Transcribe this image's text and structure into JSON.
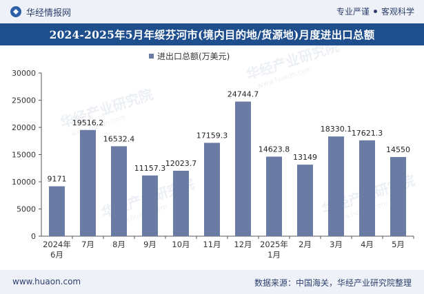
{
  "header": {
    "brand": "华经情报网",
    "tagline_left": "专业严谨",
    "tagline_right": "客观科学"
  },
  "title": "2024-2025年5月年绥芬河市(境内目的地/货源地)月度进出口总额",
  "footer": {
    "website": "www.huaon.com",
    "source": "数据来源：中国海关，华经产业研究院整理"
  },
  "watermark": "华经产业研究院",
  "watermark_url": "www.huaon.com",
  "colors": {
    "bar": "#6a7ca3",
    "title_bg": "#1f4e8c",
    "band": "#eef2f8"
  },
  "chart_data": {
    "type": "bar",
    "title": "2024-2025年5月年绥芬河市(境内目的地/货源地)月度进出口总额",
    "legend": "进出口总额(万美元)",
    "categories": [
      [
        "2024年",
        "6月"
      ],
      [
        "7月"
      ],
      [
        "8月"
      ],
      [
        "9月"
      ],
      [
        "10月"
      ],
      [
        "11月"
      ],
      [
        "12月"
      ],
      [
        "2025年",
        "1月"
      ],
      [
        "2月"
      ],
      [
        "3月"
      ],
      [
        "4月"
      ],
      [
        "5月"
      ]
    ],
    "value_labels": [
      "9171",
      "19516.2",
      "16532.4",
      "11157.3",
      "12023.7",
      "17159.3",
      "24744.7",
      "14623.8",
      "13149",
      "18330.1",
      "17621.3",
      "14550"
    ],
    "values": [
      9171,
      19516.2,
      16532.4,
      11157.3,
      12023.7,
      17159.3,
      24744.7,
      14623.8,
      13149,
      18330.1,
      17621.3,
      14550
    ],
    "ylim": [
      0,
      30000
    ],
    "yticks": [
      0,
      5000,
      10000,
      15000,
      20000,
      25000,
      30000
    ],
    "xlabel": "",
    "ylabel": ""
  }
}
